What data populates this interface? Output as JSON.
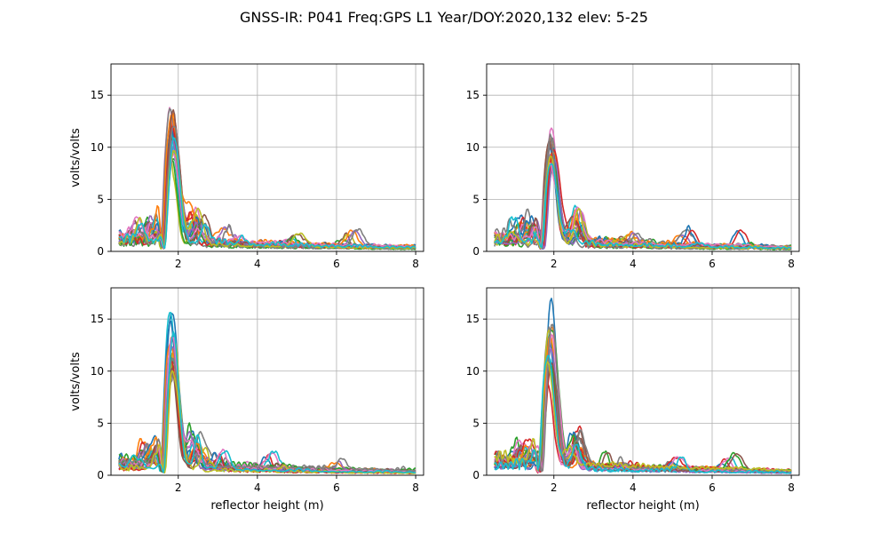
{
  "suptitle": "GNSS-IR: P041 Freq:GPS L1 Year/DOY:2020,132 elev: 5-25",
  "palette": [
    "#1f77b4",
    "#ff7f0e",
    "#2ca02c",
    "#d62728",
    "#9467bd",
    "#8c564b",
    "#e377c2",
    "#7f7f7f",
    "#bcbd22",
    "#17becf"
  ],
  "chart_data": [
    {
      "type": "line",
      "panel": "top-left",
      "xlabel": "",
      "ylabel": "volts/volts",
      "xlim": [
        0.3,
        8.2
      ],
      "ylim": [
        0,
        18
      ],
      "xticks": [
        2,
        4,
        6,
        8
      ],
      "yticks": [
        0,
        5,
        10,
        15
      ],
      "grid": true,
      "series_count": 20,
      "peak_x": 1.85,
      "peak_amplitudes": [
        10.8,
        12.1,
        8.3,
        11.6,
        9.2,
        11.3,
        12.4,
        12.9,
        7.6,
        10.2,
        10.6,
        11.8,
        7.9,
        11.0,
        9.6,
        12.6,
        8.1,
        11.4,
        9.0,
        10.0
      ]
    },
    {
      "type": "line",
      "panel": "top-right",
      "xlabel": "",
      "ylabel": "",
      "xlim": [
        0.3,
        8.2
      ],
      "ylim": [
        0,
        18
      ],
      "xticks": [
        2,
        4,
        6,
        8
      ],
      "yticks": [
        0,
        5,
        10,
        15
      ],
      "grid": true,
      "series_count": 20,
      "peak_x": 1.95,
      "peak_amplitudes": [
        8.8,
        9.6,
        7.1,
        9.2,
        8.4,
        8.0,
        10.9,
        9.7,
        7.8,
        7.3,
        9.0,
        8.5,
        7.5,
        8.9,
        8.1,
        9.4,
        7.0,
        10.2,
        8.6,
        7.7
      ]
    },
    {
      "type": "line",
      "panel": "bottom-left",
      "xlabel": "reflector height (m)",
      "ylabel": "volts/volts",
      "xlim": [
        0.3,
        8.2
      ],
      "ylim": [
        0,
        18
      ],
      "xticks": [
        2,
        4,
        6,
        8
      ],
      "yticks": [
        0,
        5,
        10,
        15
      ],
      "grid": true,
      "series_count": 20,
      "peak_x": 1.85,
      "peak_amplitudes": [
        14.9,
        12.2,
        10.5,
        11.2,
        9.3,
        10.0,
        10.8,
        8.6,
        12.0,
        15.1,
        13.6,
        11.7,
        9.8,
        10.3,
        11.5,
        9.0,
        12.4,
        10.1,
        8.9,
        13.0
      ]
    },
    {
      "type": "line",
      "panel": "bottom-right",
      "xlabel": "reflector height (m)",
      "ylabel": "",
      "xlim": [
        0.3,
        8.2
      ],
      "ylim": [
        0,
        18
      ],
      "xticks": [
        2,
        4,
        6,
        8
      ],
      "yticks": [
        0,
        5,
        10,
        15
      ],
      "grid": true,
      "series_count": 20,
      "peak_x": 1.9,
      "peak_amplitudes": [
        16.2,
        13.4,
        12.9,
        7.8,
        11.1,
        10.6,
        9.9,
        13.1,
        12.2,
        10.4,
        11.8,
        12.6,
        9.4,
        8.8,
        11.5,
        10.1,
        12.0,
        13.6,
        9.7,
        10.9
      ]
    }
  ]
}
